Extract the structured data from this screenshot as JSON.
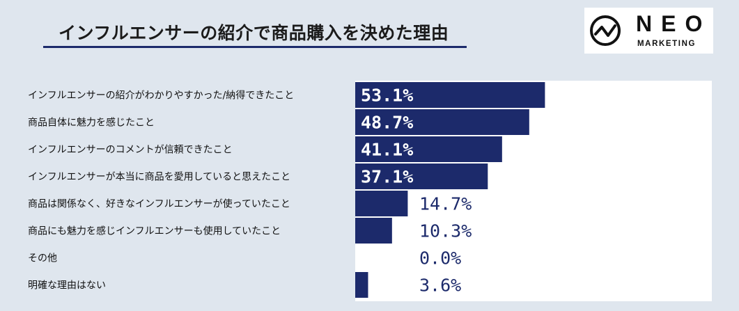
{
  "chart_data": {
    "type": "bar",
    "orientation": "horizontal",
    "title": "インフルエンサーの紹介で商品購入を決めた理由",
    "categories": [
      "インフルエンサーの紹介がわかりやすかった/納得できたこと",
      "商品自体に魅力を感じたこと",
      "インフルエンサーのコメントが信頼できたこと",
      "インフルエンサーが本当に商品を愛用していると思えたこと",
      "商品は関係なく、好きなインフルエンサーが使っていたこと",
      "商品にも魅力を感じインフルエンサーも使用していたこと",
      "その他",
      "明確な理由はない"
    ],
    "values": [
      53.1,
      48.7,
      41.1,
      37.1,
      14.7,
      10.3,
      0.0,
      3.6
    ],
    "value_labels": [
      "53.1%",
      "48.7%",
      "41.1%",
      "37.1%",
      "14.7%",
      "10.3%",
      "0.0%",
      "3.6%"
    ],
    "unit": "%",
    "xlim": [
      0,
      100
    ],
    "bar_color": "#1c2a6b",
    "plot_background": "#ffffff",
    "grid": false,
    "legend": "none"
  },
  "logo": {
    "text": "NEO",
    "subtext": "MARKETING",
    "icon": "neo-wave-circle-icon"
  }
}
